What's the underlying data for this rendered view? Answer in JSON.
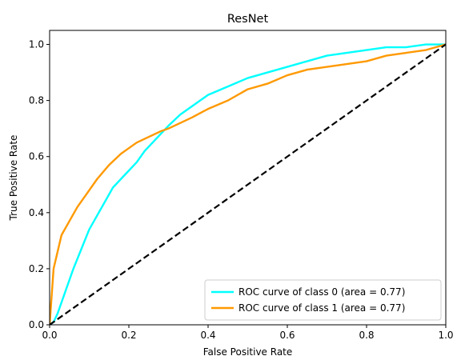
{
  "chart_data": {
    "type": "line",
    "title": "ResNet",
    "xlabel": "False Positive Rate",
    "ylabel": "True Positive Rate",
    "xlim": [
      0.0,
      1.0
    ],
    "ylim": [
      0.0,
      1.05
    ],
    "xticks": [
      0.0,
      0.2,
      0.4,
      0.6,
      0.8,
      1.0
    ],
    "yticks": [
      0.0,
      0.2,
      0.4,
      0.6,
      0.8,
      1.0
    ],
    "xtick_labels": [
      "0.0",
      "0.2",
      "0.4",
      "0.6",
      "0.8",
      "1.0"
    ],
    "ytick_labels": [
      "0.0",
      "0.2",
      "0.4",
      "0.6",
      "0.8",
      "1.0"
    ],
    "grid": false,
    "legend_position": "lower-right",
    "series": [
      {
        "name": "ROC curve of class 0 (area = 0.77)",
        "color": "#00ffff",
        "x": [
          0.0,
          0.01,
          0.02,
          0.04,
          0.06,
          0.08,
          0.1,
          0.12,
          0.14,
          0.16,
          0.18,
          0.2,
          0.22,
          0.24,
          0.26,
          0.28,
          0.3,
          0.33,
          0.36,
          0.4,
          0.45,
          0.5,
          0.55,
          0.6,
          0.65,
          0.7,
          0.75,
          0.8,
          0.85,
          0.9,
          0.95,
          1.0
        ],
        "y": [
          0.0,
          0.01,
          0.04,
          0.12,
          0.2,
          0.27,
          0.34,
          0.39,
          0.44,
          0.49,
          0.52,
          0.55,
          0.58,
          0.62,
          0.65,
          0.68,
          0.71,
          0.75,
          0.78,
          0.82,
          0.85,
          0.88,
          0.9,
          0.92,
          0.94,
          0.96,
          0.97,
          0.98,
          0.99,
          0.99,
          1.0,
          1.0
        ]
      },
      {
        "name": "ROC curve of class 1 (area = 0.77)",
        "color": "#ff9900",
        "x": [
          0.0,
          0.005,
          0.01,
          0.02,
          0.03,
          0.05,
          0.07,
          0.1,
          0.12,
          0.15,
          0.18,
          0.2,
          0.22,
          0.25,
          0.28,
          0.3,
          0.33,
          0.36,
          0.4,
          0.45,
          0.5,
          0.55,
          0.6,
          0.65,
          0.7,
          0.75,
          0.8,
          0.85,
          0.9,
          0.95,
          1.0
        ],
        "y": [
          0.0,
          0.1,
          0.2,
          0.26,
          0.32,
          0.37,
          0.42,
          0.48,
          0.52,
          0.57,
          0.61,
          0.63,
          0.65,
          0.67,
          0.69,
          0.7,
          0.72,
          0.74,
          0.77,
          0.8,
          0.84,
          0.86,
          0.89,
          0.91,
          0.92,
          0.93,
          0.94,
          0.96,
          0.97,
          0.98,
          1.0
        ]
      },
      {
        "name": "",
        "color": "#000000",
        "dashed": true,
        "x": [
          0.0,
          1.0
        ],
        "y": [
          0.0,
          1.0
        ]
      }
    ]
  }
}
